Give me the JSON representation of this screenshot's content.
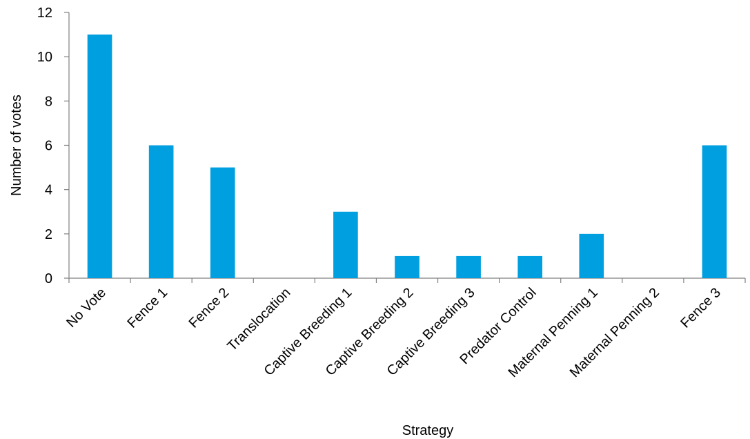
{
  "chart_data": {
    "type": "bar",
    "categories": [
      "No Vote",
      "Fence 1",
      "Fence 2",
      "Translocation",
      "Captive Breeding 1",
      "Captive Breeding 2",
      "Captive Breeding 3",
      "Predator Control",
      "Maternal Penning 1",
      "Maternal Penning 2",
      "Fence 3"
    ],
    "values": [
      11,
      6,
      5,
      0,
      3,
      1,
      1,
      1,
      2,
      0,
      6
    ],
    "yticks": [
      0,
      2,
      4,
      6,
      8,
      10,
      12
    ],
    "ylim": [
      0,
      12
    ],
    "xlabel": "Strategy",
    "ylabel": "Number of votes",
    "grid": false,
    "legend": "none",
    "bar_color": "#009FDF",
    "axis_color": "#808080"
  }
}
